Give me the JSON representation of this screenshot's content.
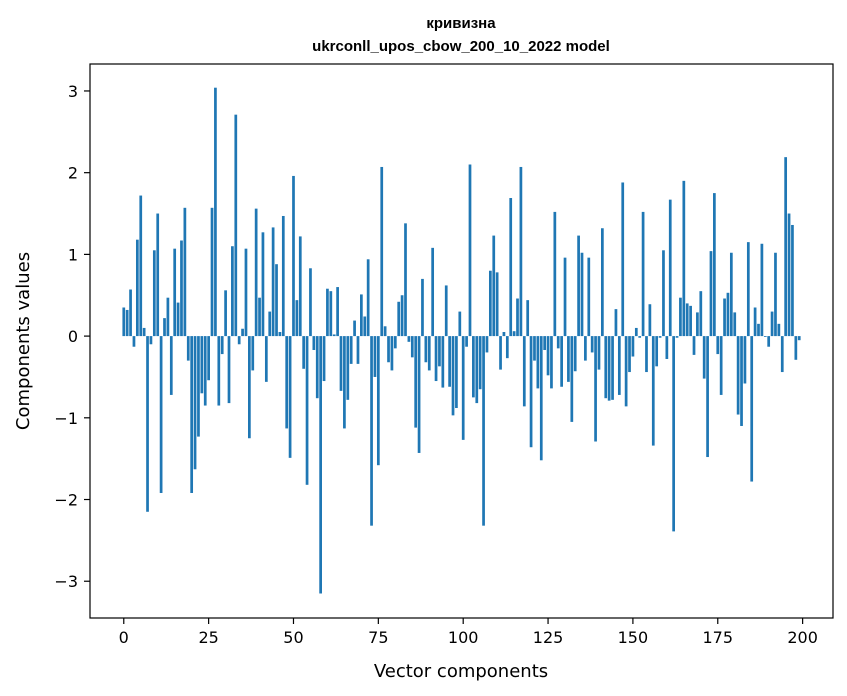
{
  "chart_data": {
    "type": "bar",
    "title": "кривизна",
    "subtitle": "ukrconll_upos_cbow_200_10_2022 model",
    "xlabel": "Vector components",
    "ylabel": "Components values",
    "xlim": [
      -9.95,
      208.95
    ],
    "ylim": [
      -3.45,
      3.33
    ],
    "xticks": [
      0,
      25,
      50,
      75,
      100,
      125,
      150,
      175,
      200
    ],
    "yticks": [
      -3,
      -2,
      -1,
      0,
      1,
      2,
      3
    ],
    "grid": false,
    "x": [
      0,
      1,
      2,
      3,
      4,
      5,
      6,
      7,
      8,
      9,
      10,
      11,
      12,
      13,
      14,
      15,
      16,
      17,
      18,
      19,
      20,
      21,
      22,
      23,
      24,
      25,
      26,
      27,
      28,
      29,
      30,
      31,
      32,
      33,
      34,
      35,
      36,
      37,
      38,
      39,
      40,
      41,
      42,
      43,
      44,
      45,
      46,
      47,
      48,
      49,
      50,
      51,
      52,
      53,
      54,
      55,
      56,
      57,
      58,
      59,
      60,
      61,
      62,
      63,
      64,
      65,
      66,
      67,
      68,
      69,
      70,
      71,
      72,
      73,
      74,
      75,
      76,
      77,
      78,
      79,
      80,
      81,
      82,
      83,
      84,
      85,
      86,
      87,
      88,
      89,
      90,
      91,
      92,
      93,
      94,
      95,
      96,
      97,
      98,
      99,
      100,
      101,
      102,
      103,
      104,
      105,
      106,
      107,
      108,
      109,
      110,
      111,
      112,
      113,
      114,
      115,
      116,
      117,
      118,
      119,
      120,
      121,
      122,
      123,
      124,
      125,
      126,
      127,
      128,
      129,
      130,
      131,
      132,
      133,
      134,
      135,
      136,
      137,
      138,
      139,
      140,
      141,
      142,
      143,
      144,
      145,
      146,
      147,
      148,
      149,
      150,
      151,
      152,
      153,
      154,
      155,
      156,
      157,
      158,
      159,
      160,
      161,
      162,
      163,
      164,
      165,
      166,
      167,
      168,
      169,
      170,
      171,
      172,
      173,
      174,
      175,
      176,
      177,
      178,
      179,
      180,
      181,
      182,
      183,
      184,
      185,
      186,
      187,
      188,
      189,
      190,
      191,
      192,
      193,
      194,
      195,
      196,
      197,
      198,
      199
    ],
    "values": [
      0.35,
      0.32,
      0.57,
      -0.13,
      1.18,
      1.72,
      0.1,
      -2.15,
      -0.1,
      1.05,
      1.5,
      -1.92,
      0.22,
      0.47,
      -0.72,
      1.07,
      0.41,
      1.17,
      1.57,
      -0.3,
      -1.92,
      -1.63,
      -1.23,
      -0.7,
      -0.85,
      -0.54,
      1.57,
      3.04,
      -0.85,
      -0.22,
      0.56,
      -0.82,
      1.1,
      2.71,
      -0.1,
      0.09,
      1.07,
      -1.25,
      -0.42,
      1.56,
      0.47,
      1.27,
      -0.56,
      0.3,
      1.33,
      0.88,
      0.05,
      1.47,
      -1.13,
      -1.49,
      1.96,
      0.44,
      1.22,
      -0.4,
      -1.82,
      0.83,
      -0.17,
      -0.76,
      -3.15,
      -0.55,
      0.58,
      0.55,
      0.02,
      0.6,
      -0.67,
      -1.13,
      -0.78,
      -0.34,
      0.19,
      -0.34,
      0.51,
      0.24,
      0.94,
      -2.32,
      -0.5,
      -1.58,
      2.07,
      0.12,
      -0.32,
      -0.42,
      -0.15,
      0.42,
      0.5,
      1.38,
      -0.07,
      -0.26,
      -1.12,
      -1.43,
      0.7,
      -0.32,
      -0.42,
      1.08,
      -0.55,
      -0.37,
      -0.63,
      0.62,
      -0.62,
      -0.97,
      -0.88,
      0.3,
      -1.27,
      -0.13,
      2.1,
      -0.75,
      -0.82,
      -0.65,
      -2.32,
      -0.2,
      0.8,
      1.23,
      0.78,
      -0.41,
      0.05,
      -0.27,
      1.69,
      0.06,
      0.46,
      2.07,
      -0.86,
      0.44,
      -1.36,
      -0.3,
      -0.64,
      -1.52,
      -0.17,
      -0.48,
      -0.64,
      1.52,
      -0.15,
      -0.62,
      0.96,
      -0.56,
      -1.05,
      -0.43,
      1.23,
      1.02,
      -0.3,
      0.96,
      -0.2,
      -1.29,
      -0.41,
      1.32,
      -0.76,
      -0.79,
      -0.78,
      0.33,
      -0.72,
      1.88,
      -0.86,
      -0.44,
      -0.25,
      0.1,
      -0.02,
      1.52,
      -0.44,
      0.39,
      -1.34,
      -0.37,
      -0.02,
      1.05,
      -0.28,
      1.67,
      -2.39,
      -0.02,
      0.47,
      1.9,
      0.4,
      0.37,
      -0.23,
      0.29,
      0.55,
      -0.52,
      -1.48,
      1.04,
      1.75,
      -0.22,
      -0.72,
      0.46,
      0.53,
      1.02,
      0.29,
      -0.96,
      -1.1,
      -0.58,
      1.15,
      -1.78,
      0.35,
      0.15,
      1.13,
      -0.01,
      -0.13,
      0.3,
      1.02,
      0.15,
      -0.44,
      2.19,
      1.5,
      1.36,
      -0.29,
      -0.05
    ]
  }
}
